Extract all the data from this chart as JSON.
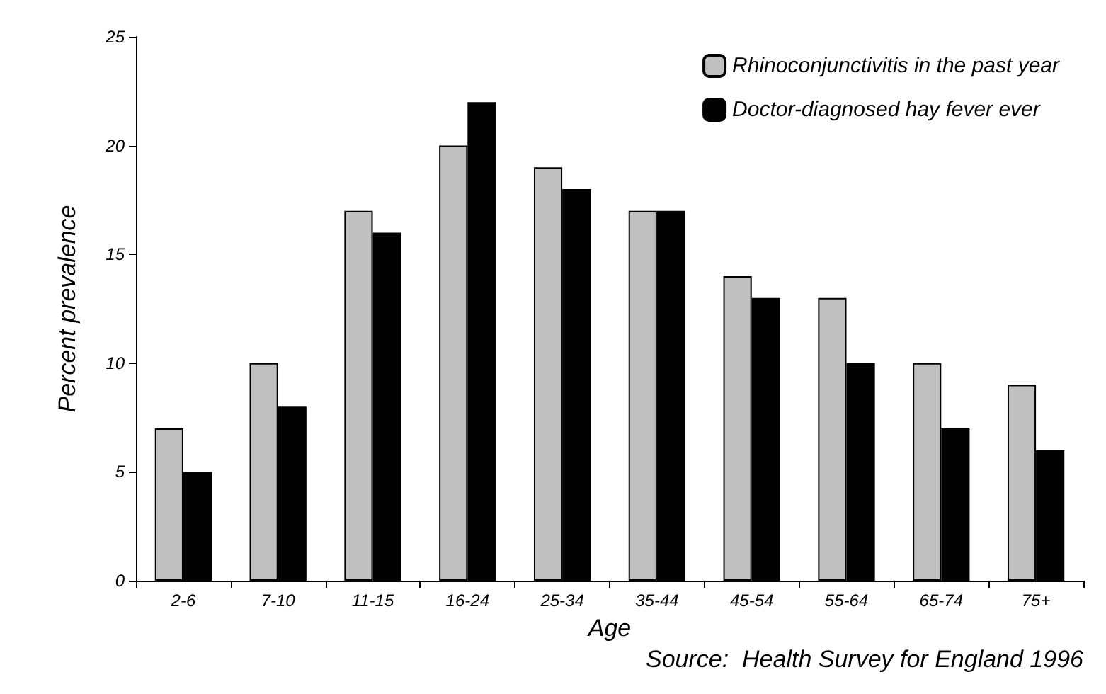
{
  "chart_data": {
    "type": "bar",
    "xlabel": "Age",
    "ylabel": "Percent prevalence",
    "categories": [
      "2-6",
      "7-10",
      "11-15",
      "16-24",
      "25-34",
      "35-44",
      "45-54",
      "55-64",
      "65-74",
      "75+"
    ],
    "series": [
      {
        "name": "Rhinoconjunctivitis in the past year",
        "color": "#c0c0c0",
        "values": [
          7,
          10,
          17,
          20,
          19,
          17,
          14,
          13,
          10,
          9
        ]
      },
      {
        "name": "Doctor-diagnosed hay fever ever",
        "color": "#000000",
        "values": [
          5,
          8,
          16,
          22,
          18,
          17,
          13,
          10,
          7,
          6
        ]
      }
    ],
    "ylim": [
      0,
      25
    ],
    "yticks": [
      0,
      5,
      10,
      15,
      20,
      25
    ],
    "grid": false,
    "legend": "top right",
    "annotations": [
      "Source:  Health Survey for England 1996"
    ]
  }
}
